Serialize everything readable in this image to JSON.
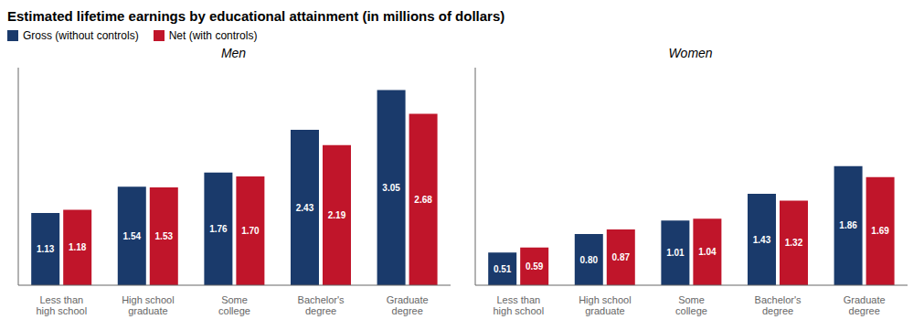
{
  "title": "Estimated lifetime earnings by educational attainment (in millions of dollars)",
  "chart_data": [
    {
      "type": "bar",
      "title": "Men",
      "categories": [
        "Less than\nhigh school",
        "High school\ngraduate",
        "Some\ncollege",
        "Bachelor's\ndegree",
        "Graduate\ndegree"
      ],
      "series": [
        {
          "name": "Gross (without controls)",
          "color": "#1a3a6b",
          "values": [
            1.13,
            1.54,
            1.76,
            2.43,
            3.05
          ],
          "value_labels": [
            "1.13",
            "1.54",
            "1.76",
            "2.43",
            "3.05"
          ]
        },
        {
          "name": "Net (with controls)",
          "color": "#c0152a",
          "values": [
            1.18,
            1.53,
            1.7,
            2.19,
            2.68
          ],
          "value_labels": [
            "1.18",
            "1.53",
            "1.70",
            "2.19",
            "2.68"
          ]
        }
      ],
      "ylim": [
        0,
        3.4
      ],
      "data_labels": true,
      "tick_labels": "x",
      "grid": false
    },
    {
      "type": "bar",
      "title": "Women",
      "categories": [
        "Less than\nhigh school",
        "High school\ngraduate",
        "Some\ncollege",
        "Bachelor's\ndegree",
        "Graduate\ndegree"
      ],
      "series": [
        {
          "name": "Gross (without controls)",
          "color": "#1a3a6b",
          "values": [
            0.51,
            0.8,
            1.01,
            1.43,
            1.86
          ],
          "value_labels": [
            "0.51",
            "0.80",
            "1.01",
            "1.43",
            "1.86"
          ]
        },
        {
          "name": "Net (with controls)",
          "color": "#c0152a",
          "values": [
            0.59,
            0.87,
            1.04,
            1.32,
            1.69
          ],
          "value_labels": [
            "0.59",
            "0.87",
            "1.04",
            "1.32",
            "1.69"
          ]
        }
      ],
      "ylim": [
        0,
        3.4
      ],
      "data_labels": true,
      "tick_labels": "x",
      "grid": false
    }
  ]
}
